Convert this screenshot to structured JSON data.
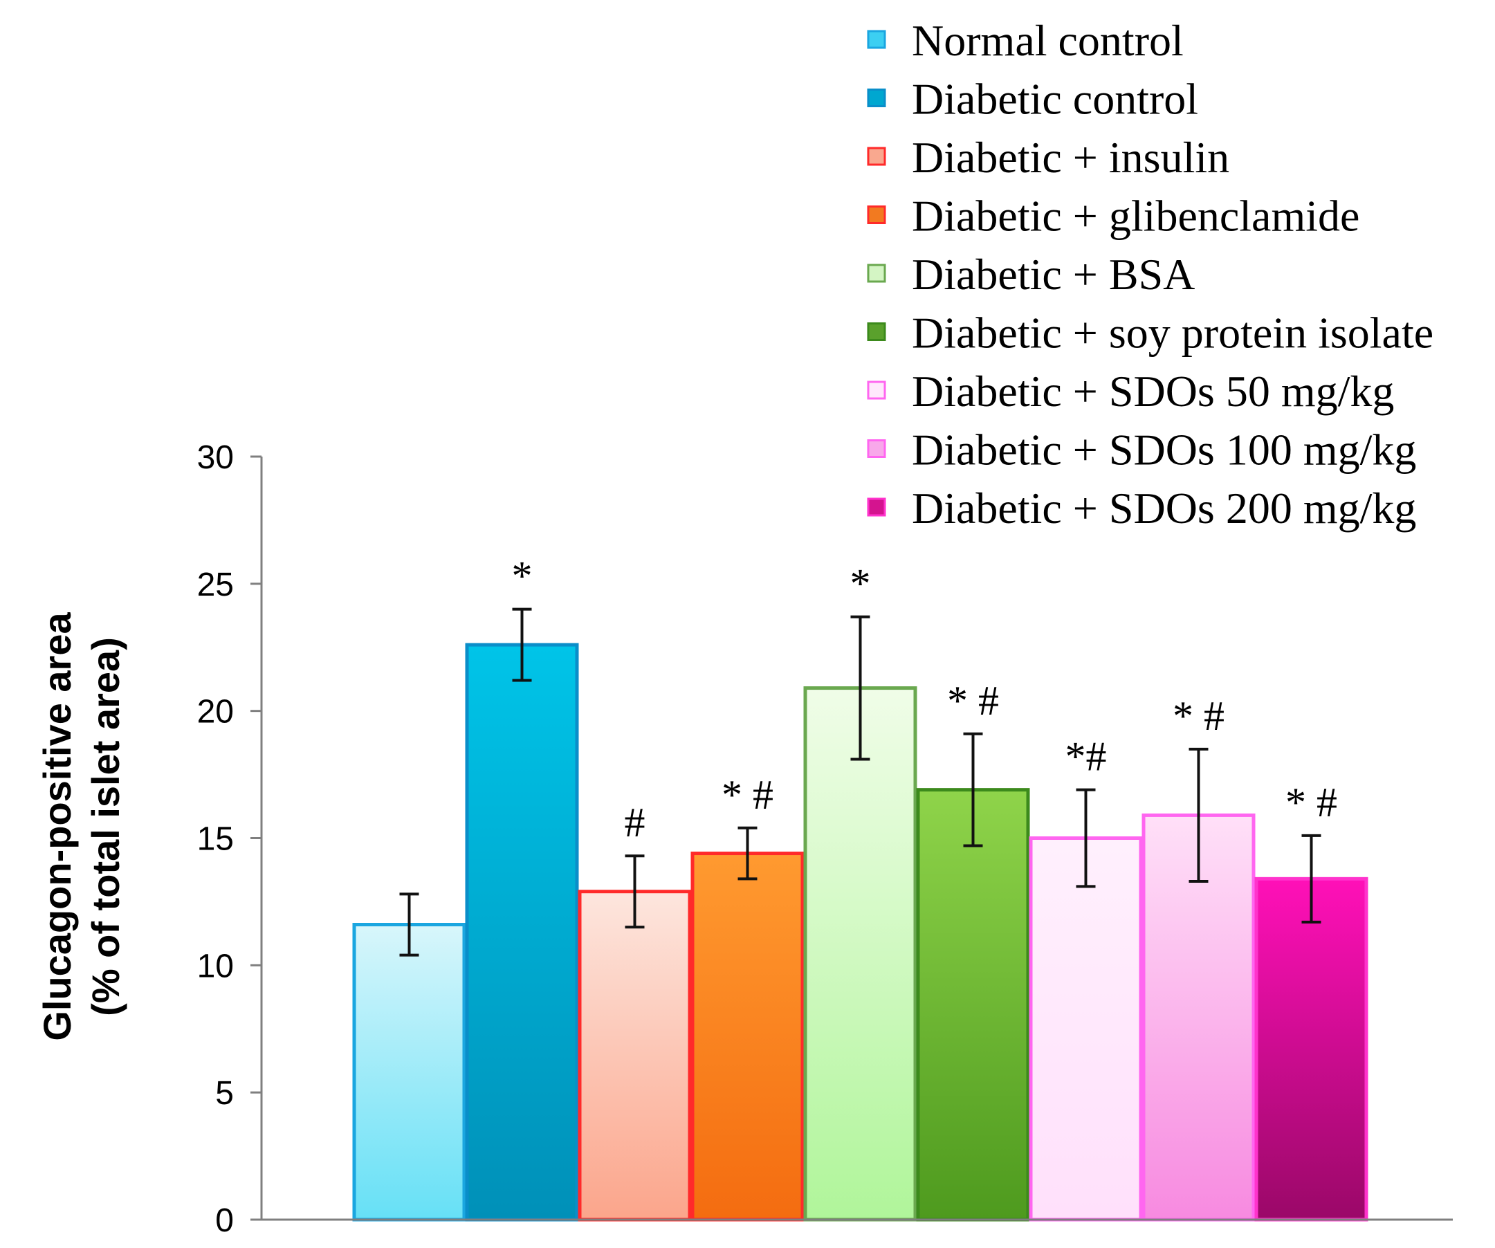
{
  "chart_data": {
    "type": "bar",
    "title": "",
    "xlabel": "",
    "ylabel": "Glucagon-positive area",
    "ylabel_line2": "(% of total islet area)",
    "ylim": [
      0,
      30
    ],
    "yticks": [
      0,
      5,
      10,
      15,
      20,
      25,
      30
    ],
    "grid": false,
    "legend_position": "top-right",
    "series": [
      {
        "name": "Normal control",
        "value": 11.6,
        "error": 1.2,
        "annotation": "",
        "colors": {
          "top": "#d8f6fb",
          "bottom": "#66e0f6",
          "border": "#1aa6e0",
          "legend": "#3ccff2"
        }
      },
      {
        "name": "Diabetic control",
        "value": 22.6,
        "error": 1.4,
        "annotation": "*",
        "colors": {
          "top": "#00c4e8",
          "bottom": "#0090b8",
          "border": "#0a8ec9",
          "legend": "#00a7d0"
        }
      },
      {
        "name": "Diabetic + insulin",
        "value": 12.9,
        "error": 1.4,
        "annotation": "#",
        "colors": {
          "top": "#fde6de",
          "bottom": "#fba58b",
          "border": "#ff2a2a",
          "legend": "#f9a88f"
        }
      },
      {
        "name": "Diabetic + glibenclamide",
        "value": 14.4,
        "error": 1.0,
        "annotation": "* #",
        "colors": {
          "top": "#ff9a30",
          "bottom": "#f46c10",
          "border": "#ff2a2a",
          "legend": "#f27a20"
        }
      },
      {
        "name": "Diabetic + BSA",
        "value": 20.9,
        "error": 2.8,
        "annotation": "*",
        "colors": {
          "top": "#f0fde8",
          "bottom": "#b0f59a",
          "border": "#6aa84f",
          "legend": "#d4f5c4"
        }
      },
      {
        "name": "Diabetic + soy protein isolate",
        "value": 16.9,
        "error": 2.2,
        "annotation": "* #",
        "colors": {
          "top": "#8fd44a",
          "bottom": "#4e9a1e",
          "border": "#3c8a1c",
          "legend": "#5aa12c"
        }
      },
      {
        "name": "Diabetic + SDOs 50 mg/kg",
        "value": 15.0,
        "error": 1.9,
        "annotation": "*#",
        "colors": {
          "top": "#fff0fd",
          "bottom": "#ffe0fb",
          "border": "#ff66f0",
          "legend": "#ffe8fc"
        }
      },
      {
        "name": "Diabetic + SDOs 100 mg/kg",
        "value": 15.9,
        "error": 2.6,
        "annotation": "* #",
        "colors": {
          "top": "#ffe0f8",
          "bottom": "#f78ae0",
          "border": "#ff66f0",
          "legend": "#f8a8ea"
        }
      },
      {
        "name": "Diabetic + SDOs 200 mg/kg",
        "value": 13.4,
        "error": 1.7,
        "annotation": "* #",
        "colors": {
          "top": "#ff10b8",
          "bottom": "#9a0868",
          "border": "#ff33cc",
          "legend": "#d4148f"
        }
      }
    ]
  }
}
